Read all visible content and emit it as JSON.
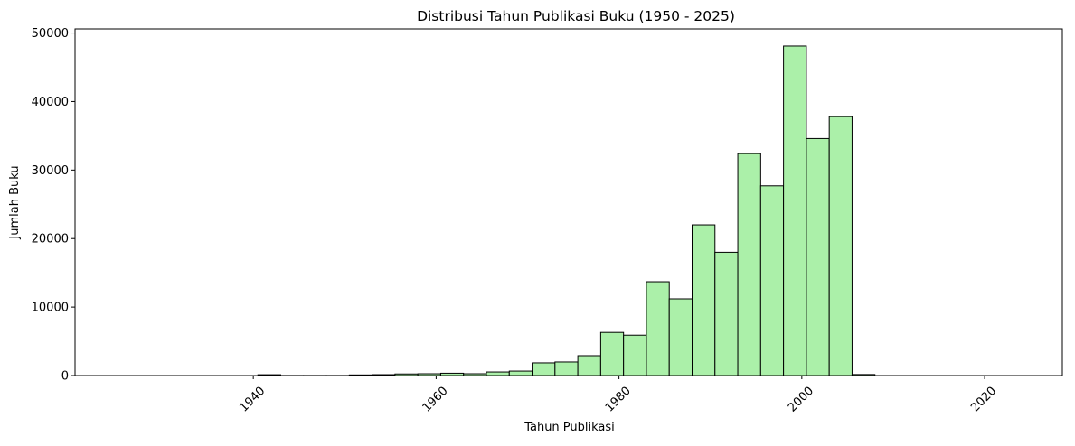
{
  "chart_data": {
    "type": "bar",
    "title": "Distribusi Tahun Publikasi Buku (1950 - 2025)",
    "xlabel": "Tahun Publikasi",
    "ylabel": "Jumlah Buku",
    "xlim": [
      1920.5,
      2028.5
    ],
    "ylim": [
      0,
      50600
    ],
    "x_ticks": [
      1940,
      1960,
      1980,
      2000,
      2020
    ],
    "y_ticks": [
      0,
      10000,
      20000,
      30000,
      40000,
      50000
    ],
    "x_tick_rotation_deg": 45,
    "bar_color": "#abf0a9",
    "edge_color": "#000000",
    "bin_width": 2.5,
    "bins": [
      {
        "start": 1925.5,
        "value": 0
      },
      {
        "start": 1928.0,
        "value": 0
      },
      {
        "start": 1930.5,
        "value": 0
      },
      {
        "start": 1933.0,
        "value": 0
      },
      {
        "start": 1935.5,
        "value": 0
      },
      {
        "start": 1938.0,
        "value": 0
      },
      {
        "start": 1940.5,
        "value": 120
      },
      {
        "start": 1943.0,
        "value": 10
      },
      {
        "start": 1945.5,
        "value": 10
      },
      {
        "start": 1948.0,
        "value": 10
      },
      {
        "start": 1950.5,
        "value": 90
      },
      {
        "start": 1953.0,
        "value": 130
      },
      {
        "start": 1955.5,
        "value": 230
      },
      {
        "start": 1958.0,
        "value": 260
      },
      {
        "start": 1960.5,
        "value": 340
      },
      {
        "start": 1963.0,
        "value": 260
      },
      {
        "start": 1965.5,
        "value": 520
      },
      {
        "start": 1968.0,
        "value": 650
      },
      {
        "start": 1970.5,
        "value": 1850
      },
      {
        "start": 1973.0,
        "value": 1980
      },
      {
        "start": 1975.5,
        "value": 2900
      },
      {
        "start": 1978.0,
        "value": 6300
      },
      {
        "start": 1980.5,
        "value": 5900
      },
      {
        "start": 1983.0,
        "value": 13700
      },
      {
        "start": 1985.5,
        "value": 11200
      },
      {
        "start": 1988.0,
        "value": 22000
      },
      {
        "start": 1990.5,
        "value": 18000
      },
      {
        "start": 1993.0,
        "value": 32400
      },
      {
        "start": 1995.5,
        "value": 27700
      },
      {
        "start": 1998.0,
        "value": 48100
      },
      {
        "start": 2000.5,
        "value": 34600
      },
      {
        "start": 2003.0,
        "value": 37800
      },
      {
        "start": 2005.5,
        "value": 150
      },
      {
        "start": 2008.0,
        "value": 0
      },
      {
        "start": 2010.5,
        "value": 0
      },
      {
        "start": 2013.0,
        "value": 0
      },
      {
        "start": 2015.5,
        "value": 0
      },
      {
        "start": 2018.0,
        "value": 0
      },
      {
        "start": 2020.5,
        "value": 0
      },
      {
        "start": 2023.0,
        "value": 0
      }
    ]
  }
}
